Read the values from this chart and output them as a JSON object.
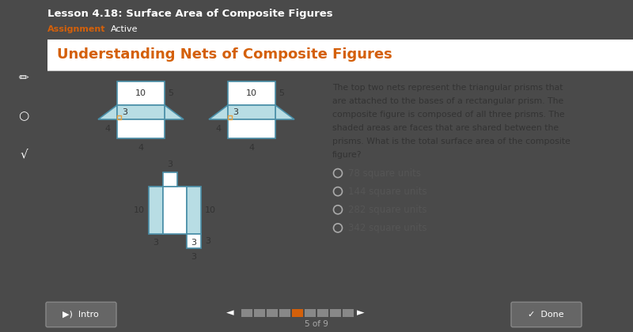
{
  "title": "Lesson 4.18: Surface Area of Composite Figures",
  "subtitle_label": "Assignment",
  "subtitle_active": "Active",
  "heading": "Understanding Nets of Composite Figures",
  "description": "The top two nets represent the triangular prisms that\nare attached to the bases of a rectangular prism. The\ncomposite figure is composed of all three prisms. The\nshaded areas are faces that are shared between the\nprisms. What is the total surface area of the composite\nfigure?",
  "choices": [
    "78 square units",
    "144 square units",
    "282 square units",
    "342 square units"
  ],
  "bg_outer": "#4a4a4a",
  "bg_inner": "#f0f0f0",
  "bg_white": "#ffffff",
  "heading_color": "#d4600a",
  "shaded_fill": "#b8dde4",
  "line_color": "#4a8fa8",
  "orange_accent": "#e8a040",
  "text_dark": "#333333",
  "text_mid": "#555555",
  "toolbar_color": "#5a5a5a",
  "nav_color": "#4a4a4a",
  "btn_color": "#666666",
  "btn_edge": "#888888",
  "radio_color": "#aaaaaa",
  "active_page_color": "#d4600a",
  "page_total": 9,
  "page_current": 5
}
